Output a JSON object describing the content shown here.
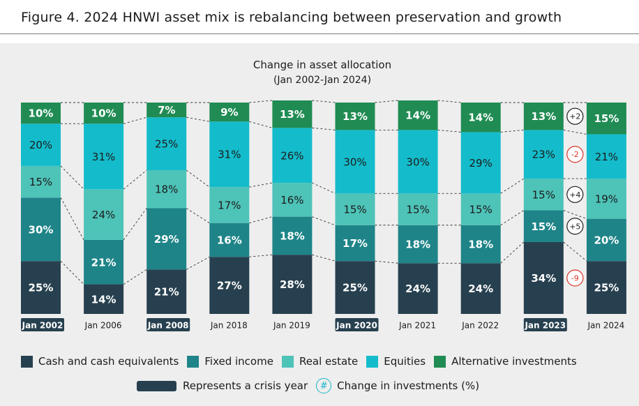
{
  "figure_title": "Figure 4. 2024 HNWI asset mix is rebalancing between preservation and growth",
  "chart_data": {
    "type": "stacked-bar",
    "title": "Change in asset allocation",
    "subtitle": "(Jan 2002-Jan 2024)",
    "unit": "%",
    "categories": [
      "Jan 2002",
      "Jan 2006",
      "Jan 2008",
      "Jan 2018",
      "Jan 2019",
      "Jan 2020",
      "Jan 2021",
      "Jan 2022",
      "Jan 2023",
      "Jan 2024"
    ],
    "crisis_years": [
      "Jan 2002",
      "Jan 2008",
      "Jan 2020",
      "Jan 2023"
    ],
    "series": [
      {
        "name": "Cash and cash equivalents",
        "color": "#27404f",
        "values": [
          25,
          14,
          21,
          27,
          28,
          25,
          24,
          24,
          34,
          25
        ]
      },
      {
        "name": "Fixed income",
        "color": "#1e8488",
        "values": [
          30,
          21,
          29,
          16,
          18,
          17,
          18,
          18,
          15,
          20
        ]
      },
      {
        "name": "Real estate",
        "color": "#4ec3b8",
        "values": [
          15,
          24,
          18,
          17,
          16,
          15,
          15,
          15,
          15,
          19
        ]
      },
      {
        "name": "Equities",
        "color": "#14bccb",
        "values": [
          20,
          31,
          25,
          31,
          26,
          30,
          30,
          29,
          23,
          21
        ]
      },
      {
        "name": "Alternative investments",
        "color": "#208c53",
        "values": [
          10,
          10,
          7,
          9,
          13,
          13,
          14,
          14,
          13,
          15
        ]
      }
    ],
    "changes": [
      {
        "series": "Alternative investments",
        "label": "+2",
        "negative": false
      },
      {
        "series": "Equities",
        "label": "-2",
        "negative": true
      },
      {
        "series": "Real estate",
        "label": "+4",
        "negative": false
      },
      {
        "series": "Fixed income",
        "label": "+5",
        "negative": false
      },
      {
        "series": "Cash and cash equivalents",
        "label": "-9",
        "negative": true
      }
    ],
    "legend": {
      "crisis_label": "Represents a crisis year",
      "change_symbol": "#",
      "change_label": "Change in investments (%)"
    },
    "colors": {
      "crisis_tag": "#27404f",
      "positive_change": "#1b1b1b",
      "negative_change": "#d9352a",
      "change_symbol": "#17b7c9"
    }
  }
}
